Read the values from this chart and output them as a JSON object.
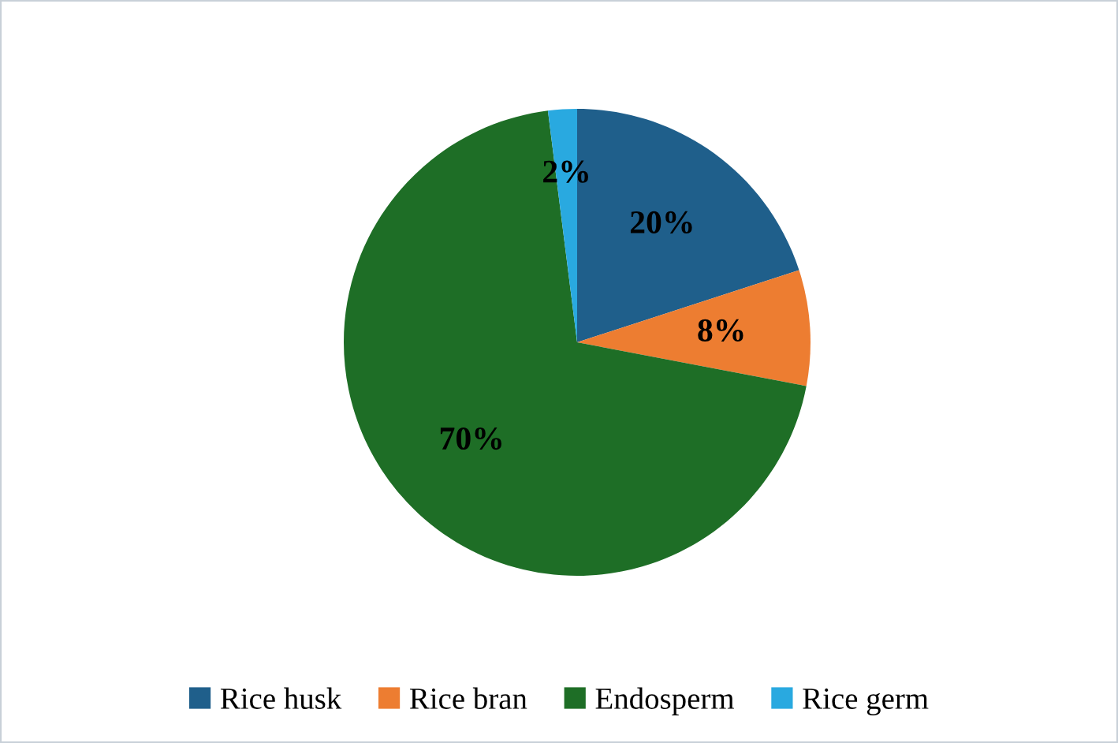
{
  "chart_data": {
    "type": "pie",
    "categories": [
      "Rice husk",
      "Rice bran",
      "Endosperm",
      "Rice germ"
    ],
    "values": [
      20,
      8,
      70,
      2
    ],
    "colors": [
      "#1f5f8b",
      "#ed7d31",
      "#1e6e26",
      "#29a9e0"
    ],
    "value_labels": [
      "20%",
      "8%",
      "70%",
      "2%"
    ],
    "legend": "bottom"
  }
}
